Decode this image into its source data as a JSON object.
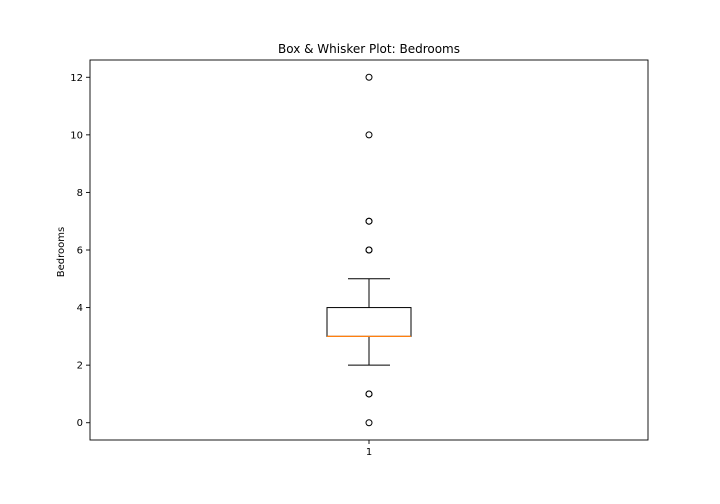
{
  "chart_data": {
    "type": "box",
    "title": "Box & Whisker Plot: Bedrooms",
    "xlabel": "",
    "ylabel": "Bedrooms",
    "categories": [
      "1"
    ],
    "ylim": [
      -0.6,
      12.6
    ],
    "yticks": [
      0,
      2,
      4,
      6,
      8,
      10,
      12
    ],
    "grid": false,
    "colors": {
      "box": "#000000",
      "median": "#ff7f0e",
      "whisker": "#000000",
      "flier": "#000000"
    },
    "boxes": [
      {
        "category": "1",
        "q1": 3,
        "median": 3,
        "q3": 4,
        "whisker_low": 2,
        "whisker_high": 5,
        "outliers": [
          0,
          1,
          1,
          6,
          6,
          7,
          7,
          10,
          12
        ]
      }
    ]
  }
}
